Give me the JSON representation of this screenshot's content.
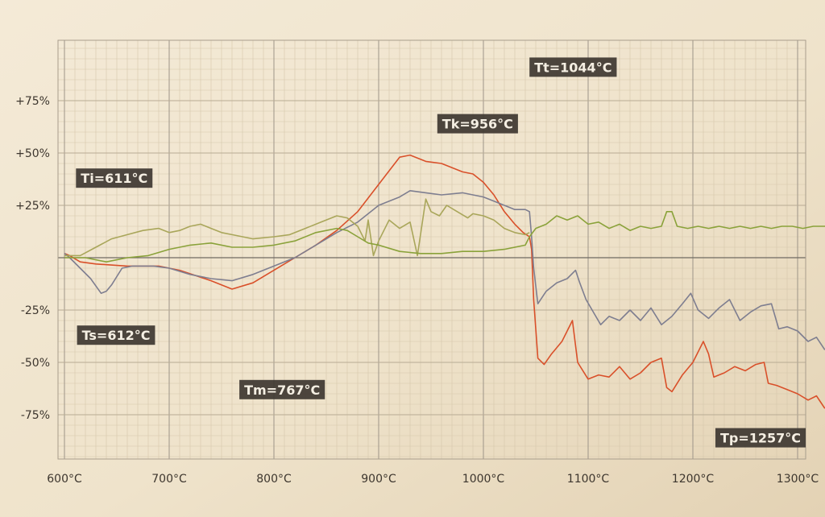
{
  "chart_data": {
    "type": "line",
    "title": "",
    "xlabel": "",
    "ylabel": "",
    "xlim": [
      600,
      1300
    ],
    "ylim": [
      -90,
      100
    ],
    "grid": true,
    "legend": "none",
    "x_ticks": [
      "600°C",
      "700°C",
      "800°C",
      "900°C",
      "1000°C",
      "1100°C",
      "1200°C",
      "1300°C"
    ],
    "y_ticks": [
      {
        "value": 75,
        "label": "+75%"
      },
      {
        "value": 50,
        "label": "+50%"
      },
      {
        "value": 25,
        "label": "+25%"
      },
      {
        "value": -25,
        "label": "-25%"
      },
      {
        "value": -50,
        "label": "-50%"
      },
      {
        "value": -75,
        "label": "-75%"
      }
    ],
    "annotations": [
      {
        "id": "ti",
        "text": "Ti=611°C",
        "anchor_x": 611,
        "anchor_y": 38
      },
      {
        "id": "ts",
        "text": "Ts=612°C",
        "anchor_x": 612,
        "anchor_y": -37
      },
      {
        "id": "tm",
        "text": "Tm=767°C",
        "anchor_x": 767,
        "anchor_y": -63
      },
      {
        "id": "tk",
        "text": "Tk=956°C",
        "anchor_x": 956,
        "anchor_y": 64
      },
      {
        "id": "tt",
        "text": "Tt=1044°C",
        "anchor_x": 1044,
        "anchor_y": 91
      },
      {
        "id": "tp",
        "text": "Tp=1257°C",
        "anchor_x": 1257,
        "anchor_y": -86
      }
    ],
    "series": [
      {
        "color": "#d9502a",
        "points": [
          [
            600,
            2
          ],
          [
            605,
            1
          ],
          [
            615,
            -2
          ],
          [
            630,
            -3
          ],
          [
            660,
            -4
          ],
          [
            690,
            -4
          ],
          [
            710,
            -6
          ],
          [
            740,
            -11
          ],
          [
            760,
            -15
          ],
          [
            780,
            -12
          ],
          [
            800,
            -6
          ],
          [
            820,
            0
          ],
          [
            840,
            6
          ],
          [
            860,
            13
          ],
          [
            880,
            22
          ],
          [
            900,
            35
          ],
          [
            920,
            48
          ],
          [
            930,
            49
          ],
          [
            945,
            46
          ],
          [
            960,
            45
          ],
          [
            980,
            41
          ],
          [
            990,
            40
          ],
          [
            1000,
            36
          ],
          [
            1010,
            30
          ],
          [
            1020,
            22
          ],
          [
            1030,
            16
          ],
          [
            1038,
            12
          ],
          [
            1044,
            10
          ],
          [
            1046,
            4
          ],
          [
            1048,
            -20
          ],
          [
            1052,
            -48
          ],
          [
            1058,
            -51
          ],
          [
            1065,
            -46
          ],
          [
            1075,
            -40
          ],
          [
            1085,
            -30
          ],
          [
            1090,
            -50
          ],
          [
            1100,
            -58
          ],
          [
            1110,
            -56
          ],
          [
            1120,
            -57
          ],
          [
            1130,
            -52
          ],
          [
            1140,
            -58
          ],
          [
            1150,
            -55
          ],
          [
            1160,
            -50
          ],
          [
            1170,
            -48
          ],
          [
            1175,
            -62
          ],
          [
            1180,
            -64
          ],
          [
            1190,
            -56
          ],
          [
            1200,
            -50
          ],
          [
            1210,
            -40
          ],
          [
            1215,
            -46
          ],
          [
            1220,
            -57
          ],
          [
            1230,
            -55
          ],
          [
            1240,
            -52
          ],
          [
            1250,
            -54
          ],
          [
            1260,
            -51
          ],
          [
            1268,
            -50
          ],
          [
            1272,
            -60
          ],
          [
            1280,
            -61
          ],
          [
            1290,
            -63
          ],
          [
            1300,
            -65
          ],
          [
            1310,
            -68
          ],
          [
            1318,
            -66
          ],
          [
            1326,
            -72
          ]
        ]
      },
      {
        "color": "#7e7e90",
        "points": [
          [
            600,
            2
          ],
          [
            605,
            0
          ],
          [
            615,
            -5
          ],
          [
            625,
            -10
          ],
          [
            635,
            -17
          ],
          [
            640,
            -16
          ],
          [
            645,
            -13
          ],
          [
            655,
            -5
          ],
          [
            665,
            -4
          ],
          [
            685,
            -4
          ],
          [
            700,
            -5
          ],
          [
            720,
            -8
          ],
          [
            740,
            -10
          ],
          [
            760,
            -11
          ],
          [
            780,
            -8
          ],
          [
            800,
            -4
          ],
          [
            820,
            0
          ],
          [
            840,
            6
          ],
          [
            860,
            12
          ],
          [
            880,
            17
          ],
          [
            900,
            25
          ],
          [
            920,
            29
          ],
          [
            930,
            32
          ],
          [
            945,
            31
          ],
          [
            960,
            30
          ],
          [
            980,
            31
          ],
          [
            1000,
            29
          ],
          [
            1010,
            27
          ],
          [
            1020,
            25
          ],
          [
            1030,
            23
          ],
          [
            1040,
            23
          ],
          [
            1044,
            22
          ],
          [
            1046,
            10
          ],
          [
            1048,
            -5
          ],
          [
            1052,
            -22
          ],
          [
            1060,
            -16
          ],
          [
            1070,
            -12
          ],
          [
            1080,
            -10
          ],
          [
            1088,
            -6
          ],
          [
            1092,
            -12
          ],
          [
            1098,
            -20
          ],
          [
            1105,
            -26
          ],
          [
            1112,
            -32
          ],
          [
            1120,
            -28
          ],
          [
            1130,
            -30
          ],
          [
            1140,
            -25
          ],
          [
            1150,
            -30
          ],
          [
            1160,
            -24
          ],
          [
            1170,
            -32
          ],
          [
            1180,
            -28
          ],
          [
            1190,
            -22
          ],
          [
            1198,
            -17
          ],
          [
            1205,
            -25
          ],
          [
            1215,
            -29
          ],
          [
            1225,
            -24
          ],
          [
            1235,
            -20
          ],
          [
            1245,
            -30
          ],
          [
            1255,
            -26
          ],
          [
            1265,
            -23
          ],
          [
            1275,
            -22
          ],
          [
            1282,
            -34
          ],
          [
            1290,
            -33
          ],
          [
            1300,
            -35
          ],
          [
            1310,
            -40
          ],
          [
            1318,
            -38
          ],
          [
            1326,
            -44
          ]
        ]
      },
      {
        "color": "#a9a65a",
        "points": [
          [
            600,
            1
          ],
          [
            615,
            1
          ],
          [
            630,
            5
          ],
          [
            645,
            9
          ],
          [
            660,
            11
          ],
          [
            675,
            13
          ],
          [
            690,
            14
          ],
          [
            700,
            12
          ],
          [
            710,
            13
          ],
          [
            720,
            15
          ],
          [
            730,
            16
          ],
          [
            740,
            14
          ],
          [
            750,
            12
          ],
          [
            760,
            11
          ],
          [
            780,
            9
          ],
          [
            800,
            10
          ],
          [
            815,
            11
          ],
          [
            830,
            14
          ],
          [
            845,
            17
          ],
          [
            860,
            20
          ],
          [
            870,
            19
          ],
          [
            880,
            15
          ],
          [
            887,
            8
          ],
          [
            890,
            18
          ],
          [
            895,
            1
          ],
          [
            900,
            8
          ],
          [
            910,
            18
          ],
          [
            920,
            14
          ],
          [
            930,
            17
          ],
          [
            937,
            1
          ],
          [
            945,
            28
          ],
          [
            950,
            22
          ],
          [
            958,
            20
          ],
          [
            965,
            25
          ],
          [
            975,
            22
          ],
          [
            985,
            19
          ],
          [
            990,
            21
          ],
          [
            1000,
            20
          ],
          [
            1010,
            18
          ],
          [
            1020,
            14
          ],
          [
            1030,
            12
          ],
          [
            1040,
            11
          ],
          [
            1044,
            12
          ]
        ]
      },
      {
        "color": "#8aa23a",
        "points": [
          [
            600,
            0
          ],
          [
            620,
            0
          ],
          [
            640,
            -2
          ],
          [
            660,
            0
          ],
          [
            680,
            1
          ],
          [
            700,
            4
          ],
          [
            720,
            6
          ],
          [
            740,
            7
          ],
          [
            760,
            5
          ],
          [
            780,
            5
          ],
          [
            800,
            6
          ],
          [
            820,
            8
          ],
          [
            840,
            12
          ],
          [
            860,
            14
          ],
          [
            870,
            13
          ],
          [
            880,
            10
          ],
          [
            890,
            7
          ],
          [
            900,
            6
          ],
          [
            920,
            3
          ],
          [
            940,
            2
          ],
          [
            960,
            2
          ],
          [
            980,
            3
          ],
          [
            1000,
            3
          ],
          [
            1020,
            4
          ],
          [
            1040,
            6
          ],
          [
            1044,
            10
          ],
          [
            1050,
            14
          ],
          [
            1060,
            16
          ],
          [
            1070,
            20
          ],
          [
            1080,
            18
          ],
          [
            1090,
            20
          ],
          [
            1100,
            16
          ],
          [
            1110,
            17
          ],
          [
            1120,
            14
          ],
          [
            1130,
            16
          ],
          [
            1140,
            13
          ],
          [
            1150,
            15
          ],
          [
            1160,
            14
          ],
          [
            1170,
            15
          ],
          [
            1175,
            22
          ],
          [
            1180,
            22
          ],
          [
            1185,
            15
          ],
          [
            1195,
            14
          ],
          [
            1205,
            15
          ],
          [
            1215,
            14
          ],
          [
            1225,
            15
          ],
          [
            1235,
            14
          ],
          [
            1245,
            15
          ],
          [
            1255,
            14
          ],
          [
            1265,
            15
          ],
          [
            1275,
            14
          ],
          [
            1285,
            15
          ],
          [
            1295,
            15
          ],
          [
            1305,
            14
          ],
          [
            1315,
            15
          ],
          [
            1327,
            15
          ]
        ]
      }
    ]
  }
}
